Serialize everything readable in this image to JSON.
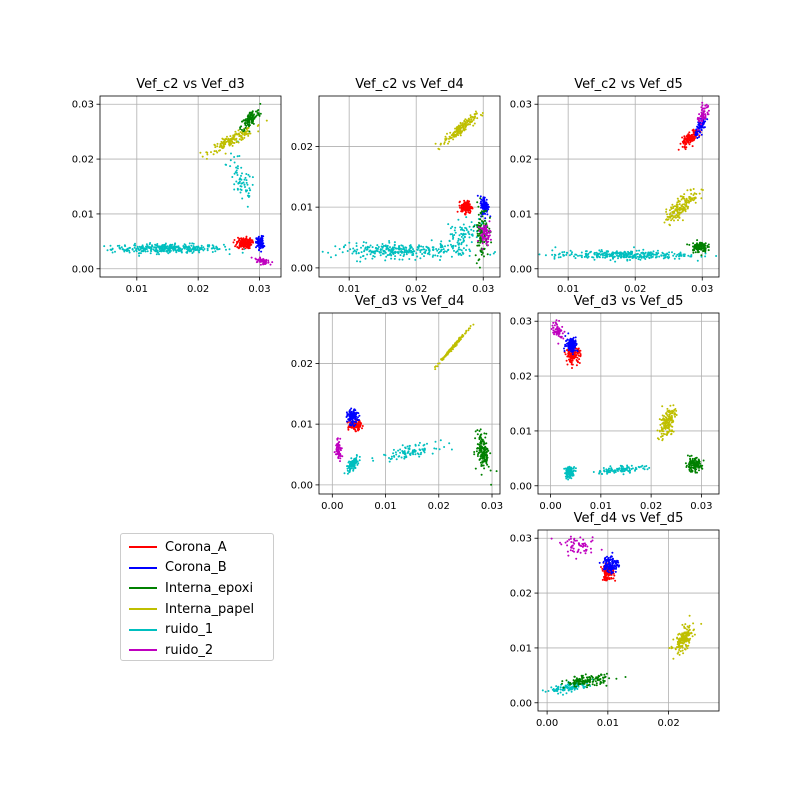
{
  "chart_data": {
    "type": "scatter",
    "grid": true,
    "legend_placement": "lower-left",
    "series": [
      {
        "name": "Corona_A",
        "color": "#ff0000"
      },
      {
        "name": "Corona_B",
        "color": "#0000ff"
      },
      {
        "name": "Interna_epoxi",
        "color": "#008000"
      },
      {
        "name": "Interna_papel",
        "color": "#bfbf00"
      },
      {
        "name": "ruido_1",
        "color": "#00bfbf"
      },
      {
        "name": "ruido_2",
        "color": "#bf00bf"
      }
    ],
    "panels": [
      {
        "title": "Vef_c2 vs Vef_d3",
        "xlim": [
          0.004,
          0.0335
        ],
        "ylim": [
          -0.0015,
          0.0315
        ],
        "xticks": [
          "0.01",
          "0.02",
          "0.03"
        ],
        "xtick_values": [
          0.01,
          0.02,
          0.03
        ],
        "yticks": [
          "0.00",
          "0.01",
          "0.02",
          "0.03"
        ],
        "ytick_values": [
          0,
          0.01,
          0.02,
          0.03
        ],
        "clusters": [
          {
            "series": "ruido_1",
            "x": 0.015,
            "y": 0.0037,
            "sx": 0.0045,
            "sy": 0.0004,
            "n": 340
          },
          {
            "series": "ruido_1",
            "x": 0.027,
            "y": 0.016,
            "sx": 0.0012,
            "sy": 0.0025,
            "rho": -0.6,
            "n": 70
          },
          {
            "series": "Interna_papel",
            "x": 0.0255,
            "y": 0.0235,
            "sx": 0.0018,
            "sy": 0.0011,
            "rho": 0.9,
            "n": 160
          },
          {
            "series": "Interna_epoxi",
            "x": 0.0285,
            "y": 0.0272,
            "sx": 0.0008,
            "sy": 0.001,
            "rho": 0.7,
            "n": 110
          },
          {
            "series": "Corona_A",
            "x": 0.0275,
            "y": 0.0047,
            "sx": 0.0006,
            "sy": 0.0005,
            "n": 150
          },
          {
            "series": "Corona_B",
            "x": 0.0301,
            "y": 0.0047,
            "sx": 0.0003,
            "sy": 0.0006,
            "n": 120
          },
          {
            "series": "ruido_2",
            "x": 0.0305,
            "y": 0.0014,
            "sx": 0.0006,
            "sy": 0.0003,
            "rho": -0.6,
            "n": 60
          }
        ]
      },
      {
        "title": "Vef_c2 vs Vef_d4",
        "xlim": [
          0.0055,
          0.0325
        ],
        "ylim": [
          -0.0015,
          0.0283
        ],
        "xticks": [
          "0.01",
          "0.02",
          "0.03"
        ],
        "xtick_values": [
          0.01,
          0.02,
          0.03
        ],
        "yticks": [
          "0.00",
          "0.01",
          "0.02"
        ],
        "ytick_values": [
          0,
          0.01,
          0.02
        ],
        "clusters": [
          {
            "series": "ruido_1",
            "x": 0.018,
            "y": 0.0028,
            "sx": 0.005,
            "sy": 0.0006,
            "n": 320
          },
          {
            "series": "ruido_1",
            "x": 0.027,
            "y": 0.0055,
            "sx": 0.0015,
            "sy": 0.0012,
            "rho": 0.5,
            "n": 80
          },
          {
            "series": "Interna_papel",
            "x": 0.0265,
            "y": 0.0228,
            "sx": 0.0012,
            "sy": 0.0011,
            "rho": 0.9,
            "n": 160
          },
          {
            "series": "Corona_A",
            "x": 0.0275,
            "y": 0.01,
            "sx": 0.0004,
            "sy": 0.0005,
            "n": 150
          },
          {
            "series": "Corona_B",
            "x": 0.0302,
            "y": 0.0102,
            "sx": 0.0003,
            "sy": 0.0008,
            "n": 120
          },
          {
            "series": "Interna_epoxi",
            "x": 0.0298,
            "y": 0.006,
            "sx": 0.0005,
            "sy": 0.0022,
            "n": 120
          },
          {
            "series": "ruido_2",
            "x": 0.0303,
            "y": 0.0055,
            "sx": 0.0004,
            "sy": 0.0008,
            "n": 60
          }
        ]
      },
      {
        "title": "Vef_c2 vs Vef_d5",
        "xlim": [
          0.0055,
          0.0325
        ],
        "ylim": [
          -0.0015,
          0.0315
        ],
        "xticks": [
          "0.01",
          "0.02",
          "0.03"
        ],
        "xtick_values": [
          0.01,
          0.02,
          0.03
        ],
        "yticks": [
          "0.00",
          "0.01",
          "0.02",
          "0.03"
        ],
        "ytick_values": [
          0,
          0.01,
          0.02,
          0.03
        ],
        "clusters": [
          {
            "series": "ruido_1",
            "x": 0.018,
            "y": 0.0025,
            "sx": 0.005,
            "sy": 0.0004,
            "n": 320
          },
          {
            "series": "Interna_papel",
            "x": 0.027,
            "y": 0.0115,
            "sx": 0.0012,
            "sy": 0.0015,
            "rho": 0.8,
            "n": 170
          },
          {
            "series": "Interna_epoxi",
            "x": 0.0295,
            "y": 0.004,
            "sx": 0.0006,
            "sy": 0.0005,
            "n": 110
          },
          {
            "series": "Corona_A",
            "x": 0.0282,
            "y": 0.0238,
            "sx": 0.0006,
            "sy": 0.0008,
            "rho": 0.7,
            "n": 120
          },
          {
            "series": "Corona_B",
            "x": 0.0298,
            "y": 0.026,
            "sx": 0.0004,
            "sy": 0.0008,
            "rho": 0.6,
            "n": 80
          },
          {
            "series": "ruido_2",
            "x": 0.0302,
            "y": 0.028,
            "sx": 0.0005,
            "sy": 0.0011,
            "rho": 0.7,
            "n": 60
          }
        ]
      },
      {
        "title": "Vef_d3 vs Vef_d4",
        "xlim": [
          -0.0025,
          0.0315
        ],
        "ylim": [
          -0.0015,
          0.0283
        ],
        "xticks": [
          "0.00",
          "0.01",
          "0.02",
          "0.03"
        ],
        "xtick_values": [
          0,
          0.01,
          0.02,
          0.03
        ],
        "yticks": [
          "0.00",
          "0.01",
          "0.02"
        ],
        "ytick_values": [
          0,
          0.01,
          0.02
        ],
        "clusters": [
          {
            "series": "ruido_1",
            "x": 0.0038,
            "y": 0.0033,
            "sx": 0.0006,
            "sy": 0.0007,
            "rho": 0.7,
            "n": 100
          },
          {
            "series": "ruido_1",
            "x": 0.0145,
            "y": 0.0055,
            "sx": 0.0025,
            "sy": 0.0006,
            "rho": 0.6,
            "n": 100
          },
          {
            "series": "Interna_papel",
            "x": 0.0227,
            "y": 0.0227,
            "sx": 0.0014,
            "sy": 0.0014,
            "rho": 0.995,
            "n": 140
          },
          {
            "series": "Interna_epoxi",
            "x": 0.0283,
            "y": 0.0055,
            "sx": 0.0006,
            "sy": 0.0015,
            "rho": -0.3,
            "n": 160
          },
          {
            "series": "Corona_A",
            "x": 0.0042,
            "y": 0.0098,
            "sx": 0.0006,
            "sy": 0.0004,
            "n": 130
          },
          {
            "series": "Corona_B",
            "x": 0.0038,
            "y": 0.0111,
            "sx": 0.0005,
            "sy": 0.0006,
            "n": 120
          },
          {
            "series": "ruido_2",
            "x": 0.0012,
            "y": 0.006,
            "sx": 0.0003,
            "sy": 0.0009,
            "n": 60
          }
        ]
      },
      {
        "title": "Vef_d3 vs Vef_d5",
        "xlim": [
          -0.0025,
          0.0335
        ],
        "ylim": [
          -0.0015,
          0.0315
        ],
        "xticks": [
          "0.00",
          "0.01",
          "0.02",
          "0.03"
        ],
        "xtick_values": [
          0,
          0.01,
          0.02,
          0.03
        ],
        "yticks": [
          "0.00",
          "0.01",
          "0.02",
          "0.03"
        ],
        "ytick_values": [
          0,
          0.01,
          0.02,
          0.03
        ],
        "clusters": [
          {
            "series": "ruido_1",
            "x": 0.0038,
            "y": 0.0025,
            "sx": 0.0005,
            "sy": 0.0005,
            "n": 90
          },
          {
            "series": "ruido_1",
            "x": 0.014,
            "y": 0.003,
            "sx": 0.0025,
            "sy": 0.0004,
            "rho": 0.6,
            "n": 100
          },
          {
            "series": "Interna_papel",
            "x": 0.0232,
            "y": 0.0115,
            "sx": 0.0008,
            "sy": 0.0015,
            "rho": 0.5,
            "n": 160
          },
          {
            "series": "Interna_epoxi",
            "x": 0.0285,
            "y": 0.0038,
            "sx": 0.0008,
            "sy": 0.0006,
            "n": 130
          },
          {
            "series": "Corona_A",
            "x": 0.0045,
            "y": 0.0238,
            "sx": 0.0007,
            "sy": 0.0007,
            "n": 130
          },
          {
            "series": "Corona_B",
            "x": 0.0042,
            "y": 0.0258,
            "sx": 0.0006,
            "sy": 0.0007,
            "n": 120
          },
          {
            "series": "ruido_2",
            "x": 0.0015,
            "y": 0.0283,
            "sx": 0.0006,
            "sy": 0.0008,
            "rho": -0.5,
            "n": 60
          }
        ]
      },
      {
        "title": "Vef_d4 vs Vef_d5",
        "xlim": [
          -0.0015,
          0.0283
        ],
        "ylim": [
          -0.0015,
          0.0315
        ],
        "xticks": [
          "0.00",
          "0.01",
          "0.02"
        ],
        "xtick_values": [
          0,
          0.01,
          0.02
        ],
        "yticks": [
          "0.00",
          "0.01",
          "0.02",
          "0.03"
        ],
        "ytick_values": [
          0,
          0.01,
          0.02,
          0.03
        ],
        "clusters": [
          {
            "series": "ruido_1",
            "x": 0.0038,
            "y": 0.0028,
            "sx": 0.0015,
            "sy": 0.0005,
            "rho": 0.6,
            "n": 120
          },
          {
            "series": "Interna_epoxi",
            "x": 0.0065,
            "y": 0.004,
            "sx": 0.0018,
            "sy": 0.0005,
            "rho": 0.3,
            "n": 140
          },
          {
            "series": "Interna_papel",
            "x": 0.0225,
            "y": 0.0115,
            "sx": 0.0008,
            "sy": 0.0013,
            "rho": 0.6,
            "n": 160
          },
          {
            "series": "Corona_A",
            "x": 0.01,
            "y": 0.0237,
            "sx": 0.0005,
            "sy": 0.0007,
            "n": 110
          },
          {
            "series": "Corona_B",
            "x": 0.0105,
            "y": 0.0253,
            "sx": 0.0006,
            "sy": 0.0008,
            "n": 120
          },
          {
            "series": "ruido_2",
            "x": 0.0053,
            "y": 0.0285,
            "sx": 0.0015,
            "sy": 0.0008,
            "rho": -0.2,
            "n": 60
          }
        ]
      }
    ]
  }
}
